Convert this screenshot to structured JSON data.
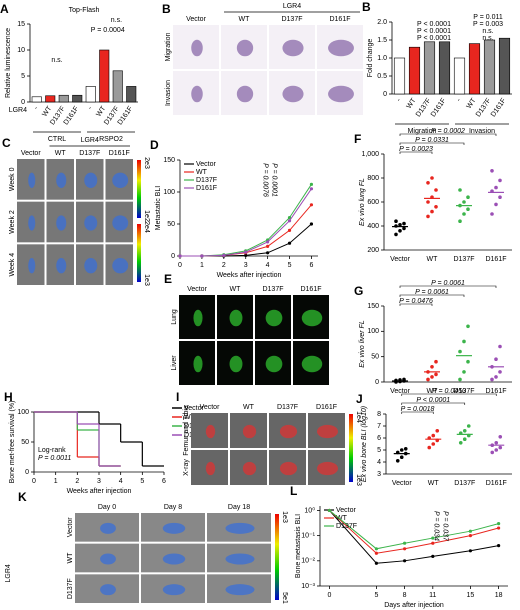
{
  "chart_data": [
    {
      "panel": "A",
      "type": "bar",
      "title": "Top-Flash",
      "ylabel": "Relative luminescence",
      "row_label": "LGR4",
      "categories": [
        "-",
        "WT",
        "D137F",
        "D161F",
        "-",
        "WT",
        "D137F",
        "D161F"
      ],
      "values": [
        1,
        1.2,
        1.3,
        1.3,
        3,
        10,
        6,
        3
      ],
      "colors": [
        "#ffffff",
        "#e8261f",
        "#9a9a9a",
        "#555555",
        "#ffffff",
        "#e8261f",
        "#9a9a9a",
        "#555555"
      ],
      "groups": [
        "CTRL",
        "RSPO2"
      ],
      "ylim": [
        0,
        15
      ],
      "yticks": [
        0,
        5,
        10,
        15
      ],
      "annotations": [
        "n.s.",
        "P = 0.0004",
        "n.s."
      ]
    },
    {
      "panel": "B",
      "type": "bar",
      "ylabel": "Fold change",
      "categories": [
        "-",
        "WT",
        "D137F",
        "D161F",
        "-",
        "WT",
        "D137F",
        "D161F"
      ],
      "values": [
        1,
        1.3,
        1.45,
        1.45,
        1,
        1.4,
        1.5,
        1.55
      ],
      "colors": [
        "#ffffff",
        "#e8261f",
        "#9a9a9a",
        "#555555",
        "#ffffff",
        "#e8261f",
        "#9a9a9a",
        "#555555"
      ],
      "groups": [
        "Migration",
        "Invasion"
      ],
      "ylim": [
        0,
        2
      ],
      "yticks": [
        0,
        {
          "value": 0.5,
          "label": "0.5"
        },
        {
          "value": 1,
          "label": "1.0"
        },
        {
          "value": 1.5,
          "label": "1.5"
        },
        {
          "value": 2,
          "label": "2.0"
        }
      ],
      "annotations": [
        "P < 0.0001",
        "P < 0.0001",
        "P < 0.0001",
        "n.s.",
        "P = 0.011",
        "P = 0.003",
        "n.s."
      ]
    },
    {
      "panel": "D",
      "type": "line",
      "ylabel": "Metastatic BLI",
      "xlabel": "Weeks after injection",
      "x": [
        0,
        1,
        2,
        3,
        4,
        5,
        6
      ],
      "xlim": [
        0,
        6.3
      ],
      "xticks": [
        0,
        1,
        2,
        3,
        4,
        5,
        6
      ],
      "ylim": [
        0,
        150
      ],
      "yticks": [
        0,
        50,
        100,
        150
      ],
      "series": [
        {
          "name": "Vector",
          "color": "#000000",
          "values": [
            0,
            0,
            0,
            1,
            5,
            20,
            50
          ]
        },
        {
          "name": "WT",
          "color": "#e8261f",
          "values": [
            0,
            0,
            1,
            5,
            15,
            40,
            80
          ]
        },
        {
          "name": "D137F",
          "color": "#3cb44b",
          "values": [
            0,
            0,
            2,
            8,
            25,
            60,
            112
          ]
        },
        {
          "name": "D161F",
          "color": "#9b4fb5",
          "values": [
            0,
            0,
            1,
            6,
            22,
            55,
            105
          ]
        }
      ],
      "annotations": [
        "P = 0.0076",
        "P = 0.0001"
      ]
    },
    {
      "panel": "F",
      "type": "dot",
      "ylabel": "Ex vivo lung FL",
      "categories": [
        "Vector",
        "WT",
        "D137F",
        "D161F"
      ],
      "colors": [
        "#000000",
        "#e8261f",
        "#3cb44b",
        "#9b4fb5"
      ],
      "values": [
        395,
        630,
        570,
        680
      ],
      "points": [
        [
          330,
          360,
          380,
          400,
          410,
          420,
          440
        ],
        [
          480,
          520,
          560,
          600,
          640,
          700,
          760,
          800
        ],
        [
          440,
          500,
          540,
          570,
          600,
          640,
          700
        ],
        [
          500,
          580,
          640,
          690,
          720,
          780,
          860
        ]
      ],
      "ylim": [
        200,
        1000
      ],
      "yticks": [
        200,
        400,
        600,
        800,
        {
          "value": 1000,
          "label": "1,000"
        }
      ],
      "annotations": [
        "P = 0.0023",
        "P = 0.0331",
        "P = 0.0002"
      ]
    },
    {
      "panel": "G",
      "type": "dot",
      "ylabel": "Ex vivo liver FL",
      "categories": [
        "Vector",
        "WT",
        "D137F",
        "D161F"
      ],
      "colors": [
        "#000000",
        "#e8261f",
        "#3cb44b",
        "#9b4fb5"
      ],
      "values": [
        2,
        20,
        52,
        30
      ],
      "points": [
        [
          0,
          1,
          2,
          3,
          4,
          5
        ],
        [
          5,
          10,
          15,
          20,
          30,
          40
        ],
        [
          5,
          20,
          40,
          60,
          80,
          110
        ],
        [
          5,
          10,
          20,
          30,
          45,
          70
        ]
      ],
      "ylim": [
        0,
        150
      ],
      "yticks": [
        0,
        50,
        100,
        150
      ],
      "annotations": [
        "P = 0.0476",
        "P = 0.0061",
        "P = 0.0061"
      ]
    },
    {
      "panel": "H",
      "type": "step",
      "ylabel": "Bone met-free survival (%)",
      "xlabel": "Weeks after injection",
      "xlim": [
        0,
        6
      ],
      "xticks": [
        0,
        1,
        2,
        3,
        4,
        5,
        6
      ],
      "ylim": [
        0,
        100
      ],
      "yticks": [
        0,
        50,
        100
      ],
      "series": [
        {
          "name": "Vector",
          "color": "#000000",
          "x": [
            0,
            3,
            4,
            5
          ],
          "values": [
            100,
            80,
            50,
            10
          ]
        },
        {
          "name": "WT",
          "color": "#e8261f",
          "x": [
            0,
            2,
            3
          ],
          "values": [
            100,
            25,
            10
          ]
        },
        {
          "name": "D137F",
          "color": "#3cb44b",
          "x": [
            0,
            2,
            3
          ],
          "values": [
            100,
            70,
            10
          ]
        },
        {
          "name": "D161F",
          "color": "#9b4fb5",
          "x": [
            0,
            2,
            3
          ],
          "values": [
            100,
            80,
            10
          ]
        }
      ],
      "annotations": [
        "Log-rank",
        "P = 0.0011"
      ]
    },
    {
      "panel": "J",
      "type": "dot",
      "ylabel": "Ex vivo bone BLI (log10)",
      "categories": [
        "Vector",
        "WT",
        "D137F",
        "D161F"
      ],
      "colors": [
        "#000000",
        "#e8261f",
        "#3cb44b",
        "#9b4fb5"
      ],
      "values": [
        4.7,
        5.9,
        6.3,
        5.4
      ],
      "points": [
        [
          4.1,
          4.4,
          4.7,
          4.8,
          5.0,
          5.1
        ],
        [
          5.2,
          5.5,
          5.8,
          6.0,
          6.2,
          6.6
        ],
        [
          5.6,
          5.9,
          6.2,
          6.4,
          6.6,
          7.0
        ],
        [
          4.8,
          5.0,
          5.2,
          5.4,
          5.6,
          6.1
        ]
      ],
      "ylim": [
        3,
        8
      ],
      "yticks": [
        3,
        4,
        5,
        6,
        7,
        8
      ],
      "annotations": [
        "P = 0.0018",
        "P < 0.0001",
        "P = 0.0450"
      ]
    },
    {
      "panel": "L",
      "type": "line",
      "log": true,
      "ylabel": "Bone metastasis BLI",
      "xlabel": "Days after injection",
      "x": [
        0,
        5,
        8,
        11,
        15,
        18
      ],
      "xlim": [
        -1,
        19
      ],
      "xticks": [
        0,
        5,
        8,
        11,
        15,
        18
      ],
      "ylim": [
        0.001,
        1.5
      ],
      "yticks": [
        {
          "value": 1,
          "label": "10⁰"
        },
        {
          "value": 0.1,
          "label": "10⁻¹"
        },
        {
          "value": 0.01,
          "label": "10⁻²"
        },
        {
          "value": 0.001,
          "label": "10⁻³"
        }
      ],
      "series": [
        {
          "name": "Vector",
          "color": "#000000",
          "values": [
            1,
            0.008,
            0.01,
            0.015,
            0.025,
            0.04
          ]
        },
        {
          "name": "WT",
          "color": "#e8261f",
          "values": [
            1,
            0.02,
            0.03,
            0.05,
            0.1,
            0.2
          ]
        },
        {
          "name": "D137F",
          "color": "#3cb44b",
          "values": [
            1,
            0.03,
            0.05,
            0.08,
            0.15,
            0.3
          ]
        }
      ],
      "annotations": [
        "P = 0.034",
        "P = 0.037"
      ]
    }
  ],
  "image_panels": [
    {
      "panel": "B",
      "header": "LGR4",
      "columns": [
        "Vector",
        "WT",
        "D137F",
        "D161F"
      ],
      "rows": [
        "Migration",
        "Invasion"
      ],
      "scale": []
    },
    {
      "panel": "C",
      "header": "LGR4",
      "columns": [
        "Vector",
        "WT",
        "D137F",
        "D161F"
      ],
      "rows": [
        "Week 0",
        "Week 2",
        "Week 4"
      ],
      "scale": [
        "2e3",
        "1e2",
        "2e4",
        "1e3"
      ]
    },
    {
      "panel": "E",
      "columns": [
        "Vector",
        "WT",
        "D137F",
        "D161F"
      ],
      "rows": [
        "Lung",
        "Liver"
      ],
      "scale": []
    },
    {
      "panel": "I",
      "columns": [
        "Vector",
        "WT",
        "D137F",
        "D161F"
      ],
      "rows": [
        "Femur and Tibia",
        "X-ray"
      ],
      "scale": [
        "1e4",
        "1e3"
      ]
    },
    {
      "panel": "K",
      "header": "LGR4",
      "columns": [
        "Day 0",
        "Day 8",
        "Day 18"
      ],
      "rows": [
        "Vector",
        "WT",
        "D137F"
      ],
      "scale": [
        "1e3",
        "5e1"
      ]
    }
  ]
}
